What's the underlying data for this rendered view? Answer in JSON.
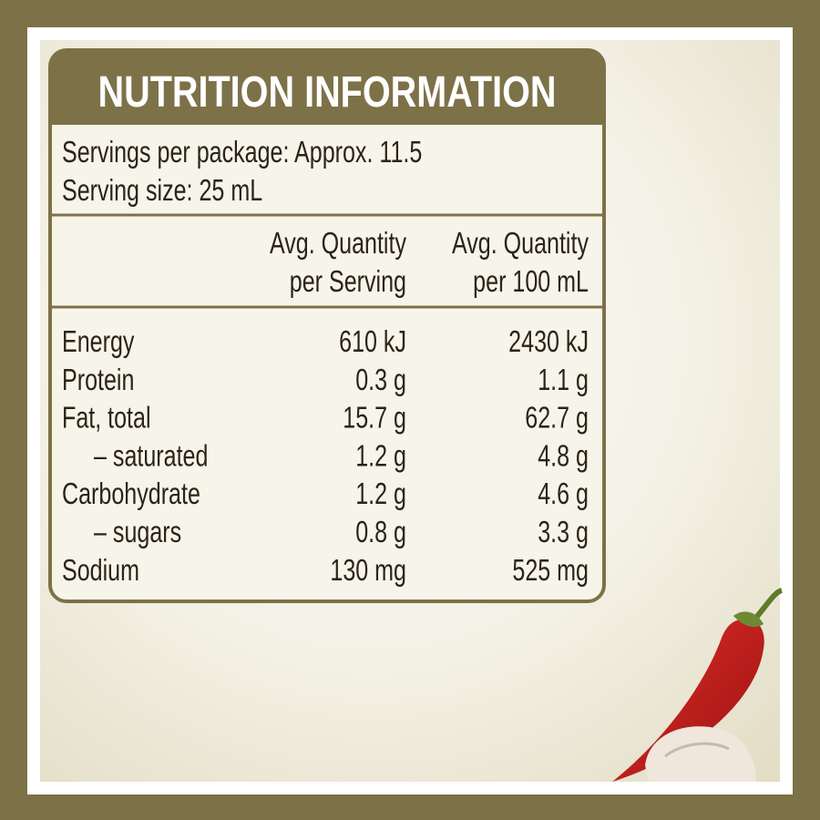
{
  "title": "NUTRITION INFORMATION",
  "servings": [
    "Servings per package: Approx. 11.5",
    "Serving size: 25 mL"
  ],
  "columns": [
    [
      "Avg. Quantity",
      "per Serving"
    ],
    [
      "Avg. Quantity",
      "per 100 mL"
    ]
  ],
  "rows": [
    [
      "Energy",
      "610 kJ",
      "2430 kJ"
    ],
    [
      "Protein",
      "0.3 g",
      "1.1 g"
    ],
    [
      "Fat, total",
      "15.7 g",
      "62.7 g"
    ],
    [
      "– saturated",
      "1.2 g",
      "4.8 g"
    ],
    [
      "Carbohydrate",
      "1.2 g",
      "4.6 g"
    ],
    [
      "– sugars",
      "0.8 g",
      "3.3 g"
    ],
    [
      "Sodium",
      "130 mg",
      "525 mg"
    ]
  ]
}
